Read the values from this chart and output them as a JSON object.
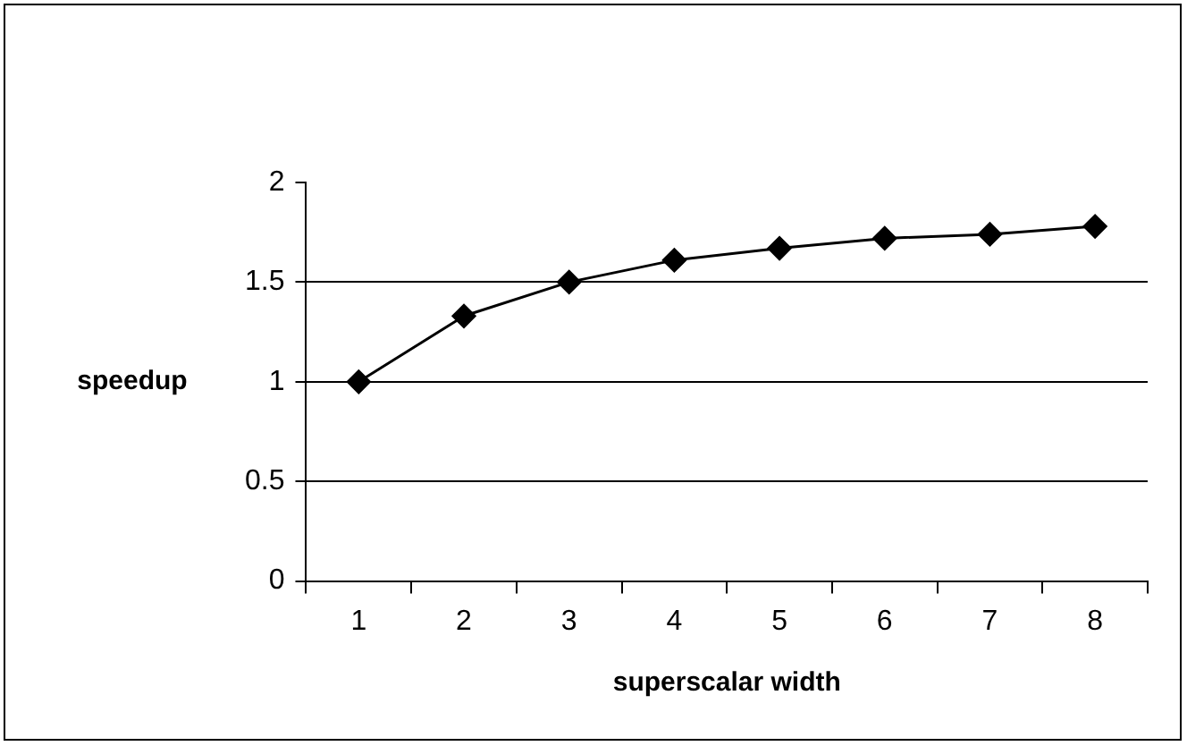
{
  "chart_data": {
    "type": "line",
    "xlabel": "superscalar width",
    "ylabel": "speedup",
    "categories": [
      "1",
      "2",
      "3",
      "4",
      "5",
      "6",
      "7",
      "8"
    ],
    "series": [
      {
        "color": "#000000",
        "values": [
          1,
          1.33,
          1.5,
          1.61,
          1.67,
          1.72,
          1.74,
          1.78
        ]
      }
    ],
    "ylim": [
      0,
      2
    ],
    "yticks": [
      0,
      0.5,
      1,
      1.5,
      2
    ],
    "grid": "y",
    "legend": false,
    "marker": "diamond",
    "line_style": "solid"
  }
}
